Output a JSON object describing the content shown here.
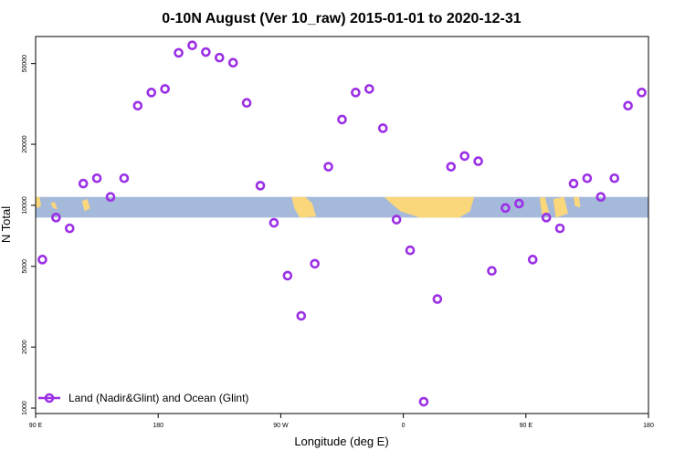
{
  "chart_data": {
    "type": "scatter",
    "title": "0-10N August (Ver 10_raw)   2015-01-01 to 2020-12-31",
    "xlabel": "Longitude (deg E)",
    "ylabel": "N Total",
    "x_scale": "linear",
    "y_scale": "log",
    "xlim": [
      90,
      540
    ],
    "ylim": [
      940,
      68000
    ],
    "x_ticks": [
      {
        "value": 90,
        "label": "90 E"
      },
      {
        "value": 180,
        "label": "180"
      },
      {
        "value": 270,
        "label": "90 W"
      },
      {
        "value": 360,
        "label": "0"
      },
      {
        "value": 450,
        "label": "90 E"
      },
      {
        "value": 540,
        "label": "180"
      }
    ],
    "y_ticks": [
      {
        "value": 1000,
        "label": "1000"
      },
      {
        "value": 2000,
        "label": "2000"
      },
      {
        "value": 5000,
        "label": "5000"
      },
      {
        "value": 10000,
        "label": "10000"
      },
      {
        "value": 20000,
        "label": "20000"
      },
      {
        "value": 50000,
        "label": "50000"
      }
    ],
    "grid": false,
    "legend_position": "bottom-left",
    "series": [
      {
        "name": "Land (Nadir&Glint) and Ocean (Glint)",
        "color": "#9b30e6",
        "marker": "open-circle",
        "points": [
          [
            95,
            5400
          ],
          [
            105,
            8700
          ],
          [
            115,
            7700
          ],
          [
            125,
            12800
          ],
          [
            135,
            13600
          ],
          [
            145,
            11000
          ],
          [
            155,
            13600
          ],
          [
            165,
            31000
          ],
          [
            175,
            36000
          ],
          [
            185,
            37500
          ],
          [
            195,
            56500
          ],
          [
            205,
            61500
          ],
          [
            215,
            57000
          ],
          [
            225,
            53500
          ],
          [
            235,
            50500
          ],
          [
            245,
            32000
          ],
          [
            255,
            12500
          ],
          [
            265,
            8200
          ],
          [
            275,
            4500
          ],
          [
            285,
            2850
          ],
          [
            295,
            5150
          ],
          [
            305,
            15500
          ],
          [
            315,
            26500
          ],
          [
            325,
            36000
          ],
          [
            335,
            37500
          ],
          [
            345,
            24000
          ],
          [
            355,
            8500
          ],
          [
            365,
            6000
          ],
          [
            375,
            1075
          ],
          [
            385,
            3450
          ],
          [
            395,
            15500
          ],
          [
            405,
            17500
          ],
          [
            415,
            16500
          ],
          [
            425,
            4750
          ],
          [
            435,
            9700
          ],
          [
            445,
            10200
          ],
          [
            455,
            5400
          ],
          [
            465,
            8700
          ],
          [
            475,
            7700
          ],
          [
            485,
            12800
          ],
          [
            495,
            13600
          ],
          [
            505,
            11000
          ],
          [
            515,
            13600
          ],
          [
            525,
            31000
          ],
          [
            535,
            36000
          ]
        ]
      }
    ],
    "background_map": {
      "band_y_range": [
        8700,
        11000
      ],
      "ocean_color": "#a5b9da",
      "land_color": "#fad77b"
    }
  }
}
